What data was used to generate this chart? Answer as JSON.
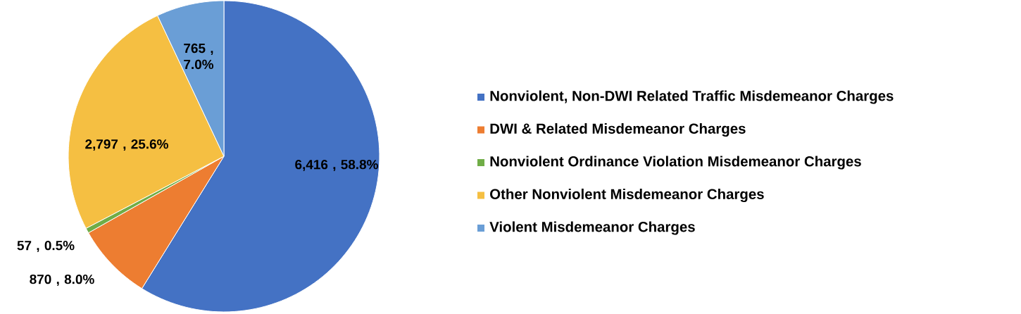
{
  "chart_data": {
    "type": "pie",
    "categories": [
      "Nonviolent, Non-DWI Related Traffic Misdemeanor Charges",
      "DWI & Related Misdemeanor Charges",
      "Nonviolent Ordinance Violation Misdemeanor Charges",
      "Other Nonviolent Misdemeanor Charges",
      "Violent Misdemeanor Charges"
    ],
    "values": [
      6416,
      870,
      57,
      2797,
      765
    ],
    "colors": [
      "#4472c4",
      "#ed7d31",
      "#70ad47",
      "#f5bf42",
      "#6a9ed6"
    ],
    "value_labels": [
      "6,416 , 58.8%",
      "870 , 8.0%",
      "57 , 0.5%",
      "2,797 , 25.6%",
      "765 , 7.0%"
    ],
    "legend": "right"
  }
}
